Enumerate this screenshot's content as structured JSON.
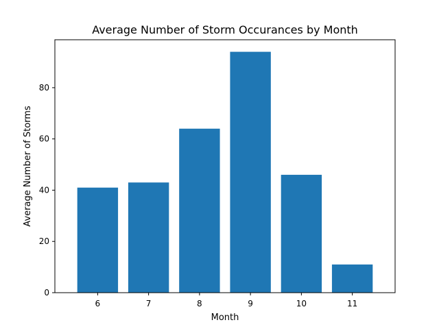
{
  "chart_data": {
    "type": "bar",
    "title": "Average Number of Storm Occurances by Month",
    "xlabel": "Month",
    "ylabel": "Average Number of Storms",
    "categories": [
      "6",
      "7",
      "8",
      "9",
      "10",
      "11"
    ],
    "values": [
      41,
      43,
      64,
      94,
      46,
      11
    ],
    "ylim": [
      0,
      98.7
    ],
    "yticks": [
      0,
      20,
      40,
      60,
      80
    ],
    "bar_color": "#1f77b4",
    "grid": false,
    "legend": "none"
  }
}
